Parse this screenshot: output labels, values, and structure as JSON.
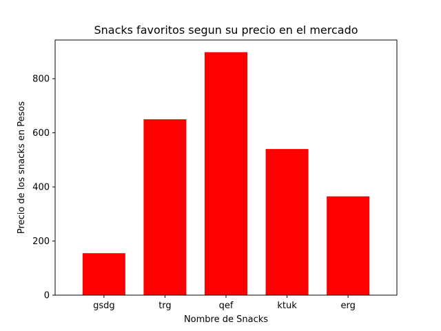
{
  "chart_data": {
    "type": "bar",
    "title": "Snacks favoritos segun su precio en el mercado",
    "xlabel": "Nombre de Snacks",
    "ylabel": "Precio de los snacks en Pesos",
    "categories": [
      "gsdg",
      "trg",
      "qef",
      "ktuk",
      "erg"
    ],
    "values": [
      155,
      650,
      898,
      540,
      365
    ],
    "ylim": [
      0,
      943
    ],
    "yticks": [
      0,
      200,
      400,
      600,
      800
    ],
    "bar_color": "#ff0000",
    "grid": false
  }
}
